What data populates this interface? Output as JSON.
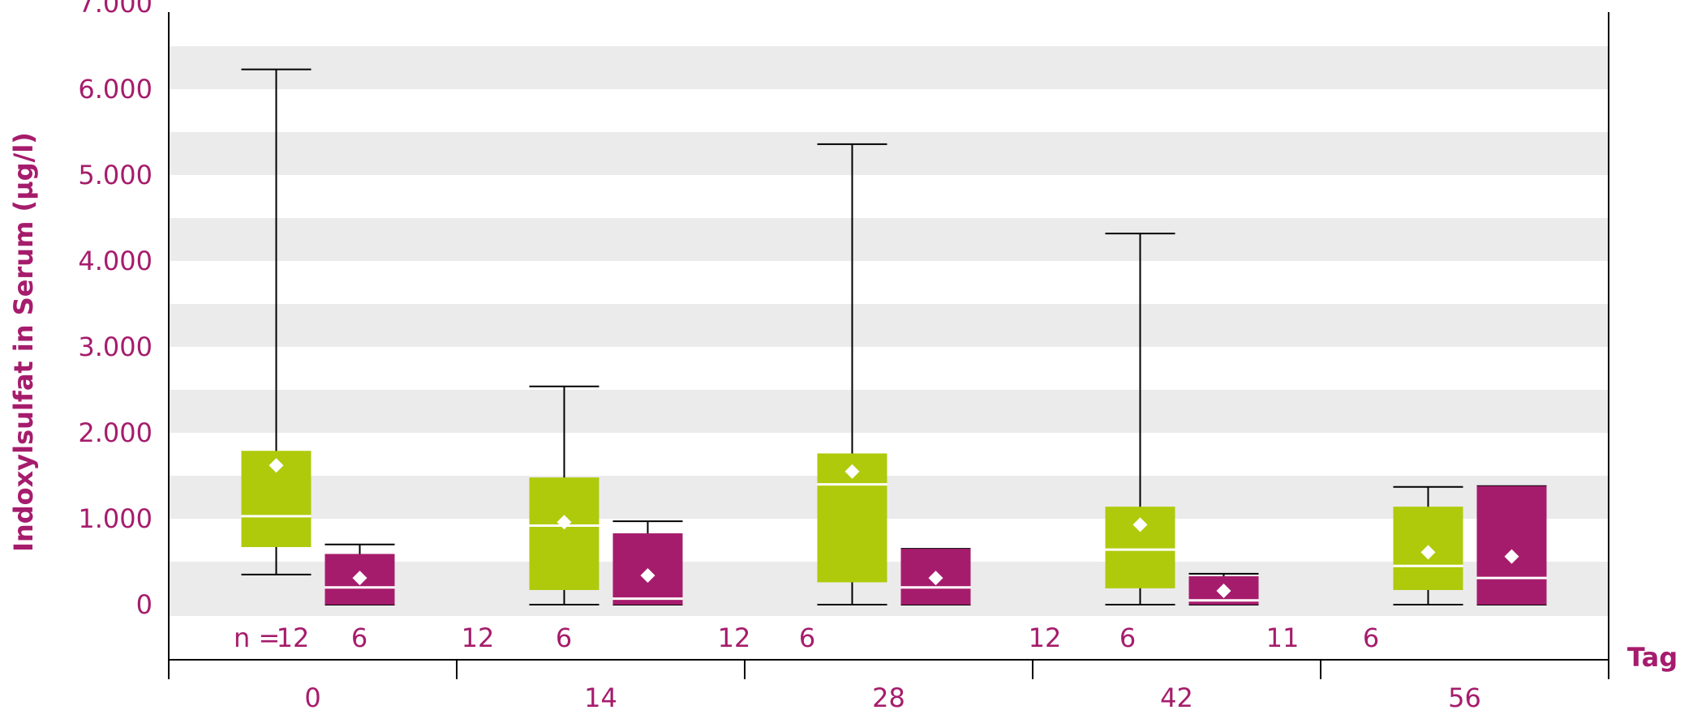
{
  "chart_data": {
    "type": "boxplot",
    "ylabel": "Indoxylsulfat in Serum (µg/l)",
    "xlabel": "Tag",
    "ylim": [
      0,
      7000
    ],
    "yticks": [
      {
        "value": 0,
        "label": "0"
      },
      {
        "value": 1000,
        "label": "1.000"
      },
      {
        "value": 2000,
        "label": "2.000"
      },
      {
        "value": 3000,
        "label": "3.000"
      },
      {
        "value": 4000,
        "label": "4.000"
      },
      {
        "value": 5000,
        "label": "5.000"
      },
      {
        "value": 6000,
        "label": "6.000"
      },
      {
        "value": 7000,
        "label": "7.000"
      }
    ],
    "categories": [
      "0",
      "14",
      "28",
      "42",
      "56"
    ],
    "grid": "horizontal bands",
    "colors": {
      "green": "#afca0b",
      "magenta": "#a61c6c",
      "text": "#a61c6c",
      "band": "#ebebeb",
      "axis": "#000000"
    },
    "n_prefix": "n =",
    "n_labels": [
      "12",
      "6",
      "12",
      "6",
      "12",
      "6",
      "12",
      "6",
      "11",
      "6"
    ],
    "series": [
      {
        "color": "green",
        "boxes": [
          {
            "category": "0",
            "whisker_low": 350,
            "q1": 670,
            "median": 1030,
            "q3": 1790,
            "whisker_high": 6230,
            "mean": 1620
          },
          {
            "category": "14",
            "whisker_low": 0,
            "q1": 170,
            "median": 920,
            "q3": 1480,
            "whisker_high": 2540,
            "mean": 960
          },
          {
            "category": "28",
            "whisker_low": 0,
            "q1": 260,
            "median": 1400,
            "q3": 1760,
            "whisker_high": 5360,
            "mean": 1550
          },
          {
            "category": "42",
            "whisker_low": 0,
            "q1": 190,
            "median": 640,
            "q3": 1140,
            "whisker_high": 4320,
            "mean": 930
          },
          {
            "category": "56",
            "whisker_low": 0,
            "q1": 170,
            "median": 450,
            "q3": 1140,
            "whisker_high": 1370,
            "mean": 610
          }
        ]
      },
      {
        "color": "magenta",
        "boxes": [
          {
            "category": "0",
            "whisker_low": 0,
            "q1": 0,
            "median": 200,
            "q3": 590,
            "whisker_high": 700,
            "mean": 310
          },
          {
            "category": "14",
            "whisker_low": 0,
            "q1": 0,
            "median": 70,
            "q3": 830,
            "whisker_high": 970,
            "mean": 340
          },
          {
            "category": "28",
            "whisker_low": 0,
            "q1": 0,
            "median": 200,
            "q3": 650,
            "whisker_high": 650,
            "mean": 310
          },
          {
            "category": "42",
            "whisker_low": 0,
            "q1": 0,
            "median": 50,
            "q3": 330,
            "whisker_high": 360,
            "mean": 160
          },
          {
            "category": "56",
            "whisker_low": 0,
            "q1": 0,
            "median": 310,
            "q3": 1380,
            "whisker_high": 1380,
            "mean": 560
          }
        ]
      }
    ]
  }
}
